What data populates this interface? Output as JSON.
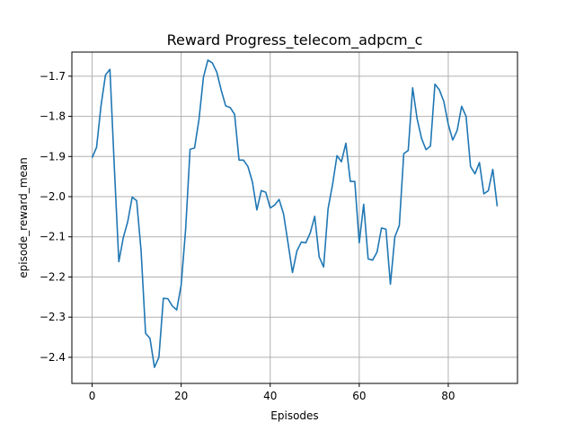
{
  "chart_data": {
    "type": "line",
    "title": "Reward Progress_telecom_adpcm_c",
    "xlabel": "Episodes",
    "ylabel": "episode_reward_mean",
    "xlim": [
      -4.55,
      95.55
    ],
    "ylim": [
      -2.465,
      -1.64
    ],
    "xticks": [
      0,
      20,
      40,
      60,
      80
    ],
    "yticks": [
      -2.4,
      -2.3,
      -2.2,
      -2.1,
      -2.0,
      -1.9,
      -1.8,
      -1.7
    ],
    "xtick_labels": [
      "0",
      "20",
      "40",
      "60",
      "80"
    ],
    "ytick_labels": [
      "−2.4",
      "−2.3",
      "−2.2",
      "−2.1",
      "−2.0",
      "−1.9",
      "−1.8",
      "−1.7"
    ],
    "grid": true,
    "series": [
      {
        "color": "#1f77b4",
        "x": [
          0,
          1,
          2,
          3,
          4,
          5,
          6,
          7,
          8,
          9,
          10,
          11,
          12,
          13,
          14,
          15,
          16,
          17,
          18,
          19,
          20,
          21,
          22,
          23,
          24,
          25,
          26,
          27,
          28,
          29,
          30,
          31,
          32,
          33,
          34,
          35,
          36,
          37,
          38,
          39,
          40,
          41,
          42,
          43,
          44,
          45,
          46,
          47,
          48,
          49,
          50,
          51,
          52,
          53,
          54,
          55,
          56,
          57,
          58,
          59,
          60,
          61,
          62,
          63,
          64,
          65,
          66,
          67,
          68,
          69,
          70,
          71,
          72,
          73,
          74,
          75,
          76,
          77,
          78,
          79,
          80,
          81,
          82,
          83,
          84,
          85,
          86,
          87,
          88,
          89,
          90,
          91
        ],
        "y": [
          -1.903,
          -1.877,
          -1.773,
          -1.697,
          -1.683,
          -1.93,
          -2.162,
          -2.102,
          -2.062,
          -2.001,
          -2.01,
          -2.135,
          -2.34,
          -2.353,
          -2.425,
          -2.4,
          -2.253,
          -2.254,
          -2.272,
          -2.282,
          -2.22,
          -2.082,
          -1.882,
          -1.879,
          -1.808,
          -1.703,
          -1.66,
          -1.667,
          -1.69,
          -1.735,
          -1.774,
          -1.778,
          -1.795,
          -1.909,
          -1.909,
          -1.925,
          -1.963,
          -2.033,
          -1.985,
          -1.989,
          -2.028,
          -2.021,
          -2.007,
          -2.043,
          -2.115,
          -2.189,
          -2.135,
          -2.113,
          -2.115,
          -2.09,
          -2.049,
          -2.15,
          -2.175,
          -2.03,
          -1.97,
          -1.898,
          -1.913,
          -1.867,
          -1.962,
          -1.962,
          -2.115,
          -2.019,
          -2.155,
          -2.158,
          -2.138,
          -2.078,
          -2.081,
          -2.218,
          -2.1,
          -2.072,
          -1.893,
          -1.885,
          -1.729,
          -1.806,
          -1.855,
          -1.883,
          -1.874,
          -1.72,
          -1.734,
          -1.763,
          -1.82,
          -1.859,
          -1.835,
          -1.775,
          -1.8,
          -1.925,
          -1.943,
          -1.915,
          -1.993,
          -1.985,
          -1.932,
          -2.024
        ]
      }
    ]
  }
}
